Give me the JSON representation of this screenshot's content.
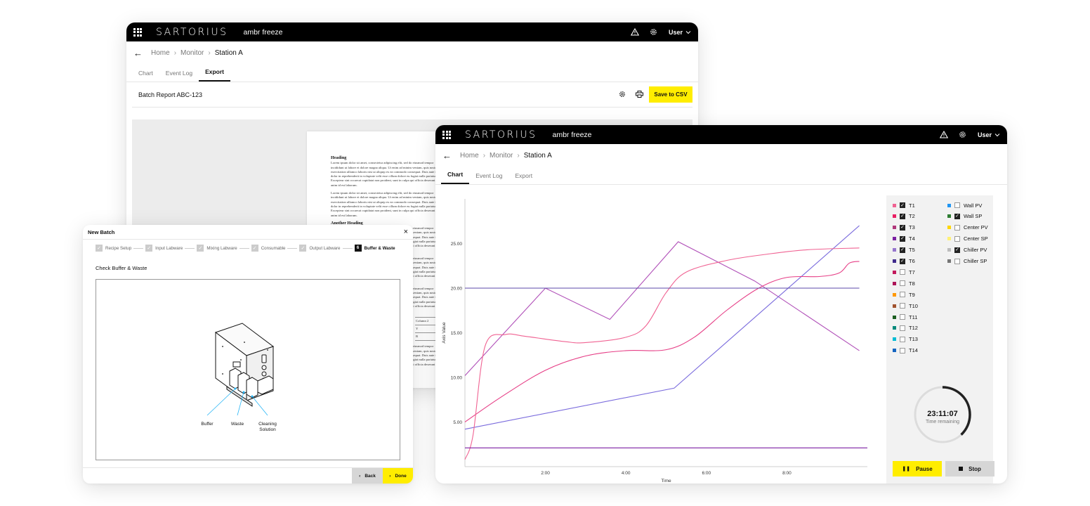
{
  "colors": {
    "accent": "#ffed00",
    "topbar": "#000000"
  },
  "back_window": {
    "brand": "SARTORIUS",
    "app_name": "ambr freeze",
    "user": "User",
    "breadcrumb": [
      "Home",
      "Monitor",
      "Station A"
    ],
    "tabs": [
      {
        "label": "Chart",
        "active": false
      },
      {
        "label": "Event Log",
        "active": false
      },
      {
        "label": "Export",
        "active": true
      }
    ],
    "report_title": "Batch Report ABC-123",
    "save_label": "Save to CSV",
    "doc": {
      "heading1": "Heading",
      "para1": "Lorem ipsum dolor sit amet, consectetur adipiscing elit, sed do eiusmod tempor incididunt ut labore et dolore magna aliqua. Ut enim ad minim veniam, quis nostrud exercitation ullamco laboris nisi ut aliquip ex ea commodo consequat. Duis aute irure dolor in reprehenderit in voluptate velit esse cillum dolore eu fugiat nulla pariatur. Excepteur sint occaecat cupidatat non proident, sunt in culpa qui officia deserunt mollit anim id est laborum.",
      "para2": "Lorem ipsum dolor sit amet, consectetur adipiscing elit, sed do eiusmod tempor incididunt ut labore et dolore magna aliqua. Ut enim ad minim veniam, quis nostrud exercitation ullamco laboris nisi ut aliquip ex ea commodo consequat. Duis aute irure dolor in reprehenderit in voluptate velit esse cillum dolore eu fugiat nulla pariatur. Excepteur sint occaecat cupidatat non proident, sunt in culpa qui officia deserunt mollit anim id est laborum.",
      "heading2": "Another Heading",
      "table_col": "Column 2",
      "table_cells": [
        "Y",
        "B"
      ]
    }
  },
  "dialog": {
    "title": "New Batch",
    "steps": [
      {
        "label": "Recipe Setup",
        "done": true
      },
      {
        "label": "Input Labware",
        "done": true
      },
      {
        "label": "Mixing Labware",
        "done": true
      },
      {
        "label": "Consumable",
        "done": true
      },
      {
        "label": "Output Labware",
        "done": true
      },
      {
        "label": "Buffer & Waste",
        "done": false,
        "number": "6"
      }
    ],
    "instruction": "Check Buffer & Waste",
    "callouts": [
      "Buffer",
      "Waste",
      "Cleaning Solution"
    ],
    "back_label": "Back",
    "done_label": "Done"
  },
  "front_window": {
    "brand": "SARTORIUS",
    "app_name": "ambr freeze",
    "user": "User",
    "breadcrumb": [
      "Home",
      "Monitor",
      "Station A"
    ],
    "tabs": [
      {
        "label": "Chart",
        "active": true
      },
      {
        "label": "Event Log",
        "active": false
      },
      {
        "label": "Export",
        "active": false
      }
    ],
    "legend_left": [
      {
        "name": "T1",
        "color": "#f06292",
        "checked": true
      },
      {
        "name": "T2",
        "color": "#e91e63",
        "checked": true
      },
      {
        "name": "T3",
        "color": "#b0377a",
        "checked": true
      },
      {
        "name": "T4",
        "color": "#7b1fa2",
        "checked": true
      },
      {
        "name": "T5",
        "color": "#9575cd",
        "checked": true
      },
      {
        "name": "T6",
        "color": "#3f2b8c",
        "checked": true
      },
      {
        "name": "T7",
        "color": "#c2185b",
        "checked": false
      },
      {
        "name": "T8",
        "color": "#ad1457",
        "checked": false
      },
      {
        "name": "T9",
        "color": "#ff9800",
        "checked": false
      },
      {
        "name": "T10",
        "color": "#a0522d",
        "checked": false
      },
      {
        "name": "T11",
        "color": "#1b5e20",
        "checked": false
      },
      {
        "name": "T12",
        "color": "#00897b",
        "checked": false
      },
      {
        "name": "T13",
        "color": "#00bcd4",
        "checked": false
      },
      {
        "name": "T14",
        "color": "#1565c0",
        "checked": false
      }
    ],
    "legend_right": [
      {
        "name": "Wall PV",
        "color": "#2196f3",
        "checked": false
      },
      {
        "name": "Wall SP",
        "color": "#2e7d32",
        "checked": true
      },
      {
        "name": "Center PV",
        "color": "#ffd600",
        "checked": false
      },
      {
        "name": "Center SP",
        "color": "#fff176",
        "checked": false
      },
      {
        "name": "Chiller PV",
        "color": "#bdbdbd",
        "checked": true
      },
      {
        "name": "Chiller SP",
        "color": "#757575",
        "checked": false
      }
    ],
    "timer": {
      "value": "23:11:07",
      "label": "Time remaining",
      "progress": 0.38
    },
    "pause_label": "Pause",
    "stop_label": "Stop"
  },
  "chart_data": {
    "type": "line",
    "xlabel": "Time",
    "ylabel": "Axis Value",
    "x_ticks": [
      "2:00",
      "4:00",
      "6:00",
      "8:00"
    ],
    "y_ticks": [
      "5.00",
      "10.00",
      "15.00",
      "20.00",
      "25.00"
    ],
    "xlim": [
      0,
      10
    ],
    "ylim": [
      0,
      30
    ],
    "series": [
      {
        "color": "#b04fb8",
        "points": [
          [
            0,
            10.2
          ],
          [
            2,
            20
          ],
          [
            3.6,
            16.5
          ],
          [
            5.3,
            25.2
          ],
          [
            7.2,
            20.8
          ],
          [
            9.8,
            13
          ]
        ]
      },
      {
        "color": "#7a6bdd",
        "points": [
          [
            0,
            4.2
          ],
          [
            5.2,
            8.8
          ],
          [
            9.8,
            27
          ]
        ]
      },
      {
        "color": "#e63e86",
        "points": [
          [
            0,
            5
          ],
          [
            0.9,
            7.8
          ],
          [
            2,
            10.8
          ],
          [
            3,
            12.4
          ],
          [
            4,
            13
          ],
          [
            5,
            13.1
          ],
          [
            5.7,
            14.5
          ],
          [
            6.5,
            17.5
          ],
          [
            7.3,
            20
          ],
          [
            8,
            21.2
          ],
          [
            8.8,
            21.3
          ],
          [
            9.3,
            21.7
          ],
          [
            9.55,
            22.8
          ],
          [
            9.8,
            23
          ]
        ]
      },
      {
        "color": "#f06292",
        "points": [
          [
            0,
            0.8
          ],
          [
            0.2,
            3.5
          ],
          [
            0.5,
            13.5
          ],
          [
            1,
            14.8
          ],
          [
            1.5,
            14.6
          ],
          [
            2.5,
            14
          ],
          [
            3,
            13.9
          ],
          [
            4,
            14.5
          ],
          [
            4.5,
            15.8
          ],
          [
            5,
            19.5
          ],
          [
            5.5,
            21.8
          ],
          [
            6.5,
            23.1
          ],
          [
            7.5,
            23.8
          ],
          [
            8.5,
            24.3
          ],
          [
            9.8,
            24.5
          ]
        ]
      },
      {
        "color": "#5b4aa8",
        "points": [
          [
            0,
            20
          ],
          [
            9.8,
            20
          ]
        ]
      },
      {
        "color": "#7b1fa2",
        "points": [
          [
            0,
            2.1
          ],
          [
            10,
            2.1
          ]
        ]
      }
    ]
  }
}
